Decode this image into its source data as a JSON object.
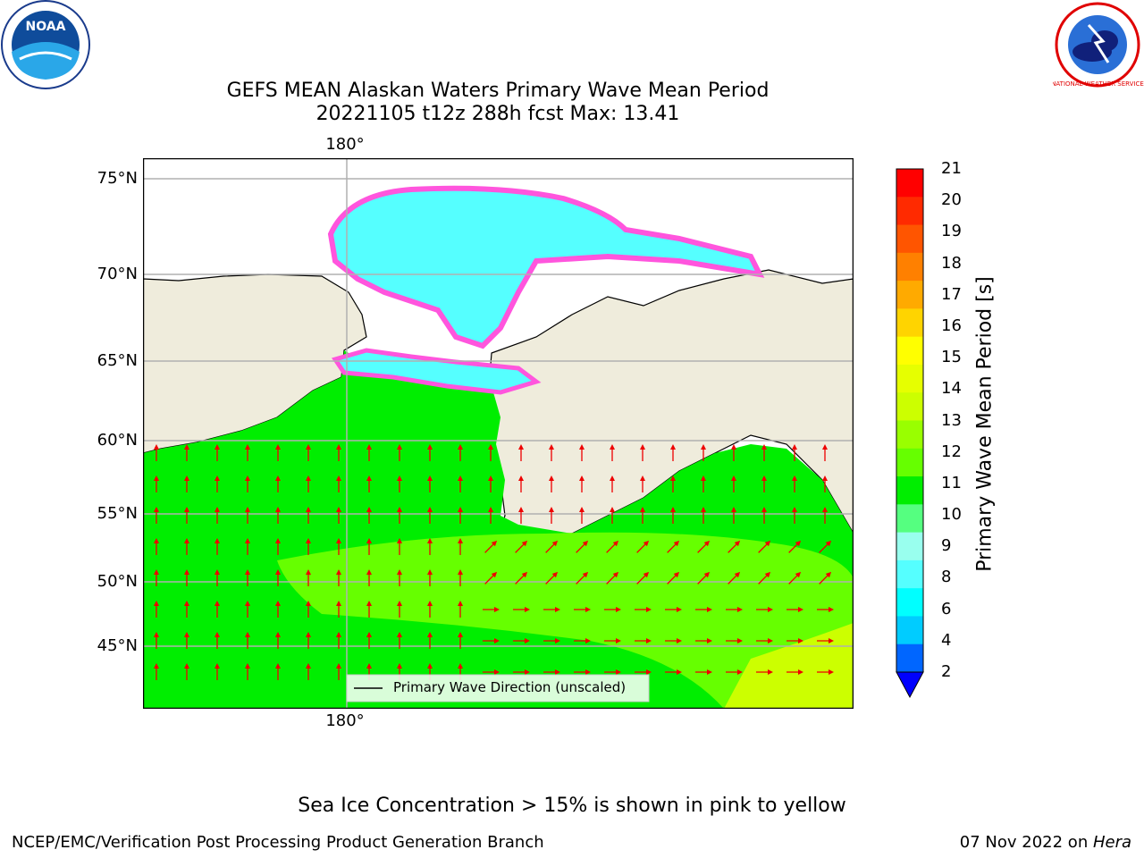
{
  "header": {
    "title_line1": "GEFS MEAN Alaskan Waters Primary Wave Mean Period",
    "title_line2": "20221105 t12z 288h fcst   Max: 13.41"
  },
  "logos": {
    "noaa_text": "NOAA",
    "nws_text": "NATIONAL WEATHER SERVICE"
  },
  "map": {
    "lon_label_top": "180°",
    "lon_label_bottom": "180°",
    "lat_labels": [
      "75°N",
      "70°N",
      "65°N",
      "60°N",
      "55°N",
      "50°N",
      "45°N"
    ],
    "legend_label": "Primary Wave Direction (unscaled)"
  },
  "colorbar": {
    "label": "Primary Wave Mean Period [s]",
    "ticks": [
      "21",
      "20",
      "19",
      "18",
      "17",
      "16",
      "15",
      "14",
      "13",
      "12",
      "11",
      "10",
      "9",
      "8",
      "6",
      "4",
      "2"
    ],
    "colors": [
      "#ff0000",
      "#ff2a00",
      "#ff5500",
      "#ff8000",
      "#ffaa00",
      "#ffd400",
      "#ffff00",
      "#e6ff00",
      "#ccff00",
      "#99ff00",
      "#66ff00",
      "#00ee00",
      "#55ff80",
      "#99ffee",
      "#55ffff",
      "#00ffff",
      "#00ccff",
      "#0066ff"
    ]
  },
  "colors": {
    "land": "#efecdc",
    "ocean_main": "#00ee00",
    "ocean_light": "#66ff00",
    "ice": "#55ffff",
    "ice_edge": "#ff55dd",
    "arrow": "#ee0000"
  },
  "caption": "Sea Ice Concentration > 15% is shown in pink to yellow",
  "footer": {
    "left": "NCEP/EMC/Verification Post Processing Product Generation Branch",
    "right_plain": "07 Nov 2022 on ",
    "right_italic": "Hera"
  }
}
